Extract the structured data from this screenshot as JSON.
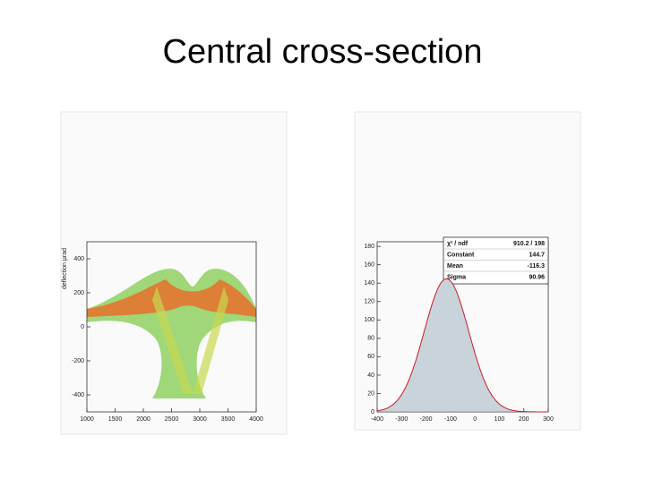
{
  "slide": {
    "title": "Central cross-section",
    "left_plot": {
      "y_label": "deflection µrad",
      "xlim": [
        1000,
        4000
      ],
      "xticks": [
        1000,
        1500,
        2000,
        2500,
        3000,
        3500,
        4000
      ],
      "ylim": [
        -500,
        500
      ],
      "yticks": [
        400,
        200,
        0,
        -200,
        -400
      ]
    },
    "right_plot": {
      "xlim": [
        -400,
        300
      ],
      "xticks": [
        -400,
        -300,
        -200,
        -100,
        0,
        100,
        200,
        300
      ],
      "ylim": [
        0,
        185
      ],
      "yticks": [
        0,
        20,
        40,
        60,
        80,
        100,
        120,
        140,
        160,
        180
      ],
      "stats": {
        "rows": [
          [
            "χ² / ndf",
            "910.2 / 198"
          ],
          [
            "Constant",
            "144.7"
          ],
          [
            "Mean",
            "-116.3"
          ],
          [
            "Sigma",
            "90.96"
          ]
        ]
      },
      "fit": {
        "constant": 144.7,
        "mean": -116.3,
        "sigma": 90.96
      }
    }
  }
}
